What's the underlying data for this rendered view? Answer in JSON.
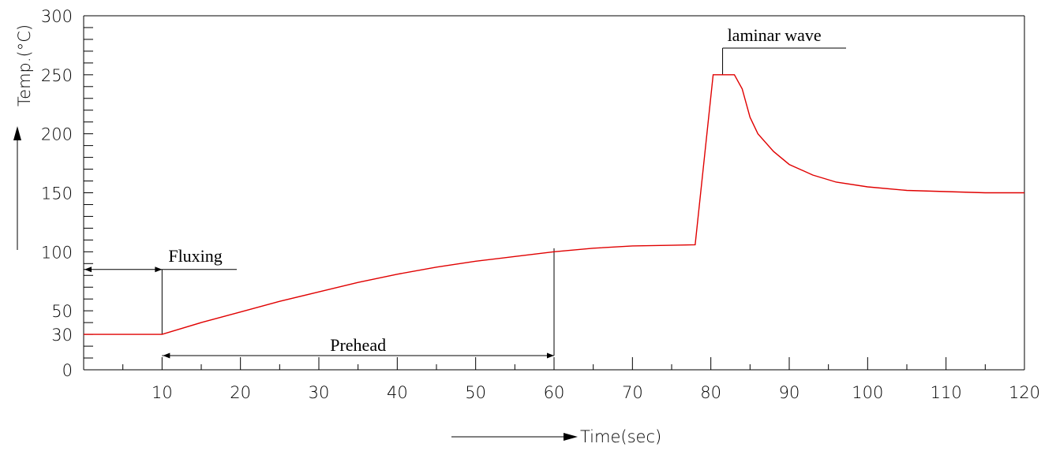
{
  "chart_data": {
    "type": "line",
    "title": "",
    "xlabel": "Time(sec)",
    "ylabel": "Temp.(°C)",
    "xlim": [
      0,
      120
    ],
    "ylim": [
      0,
      300
    ],
    "x_ticks": [
      10,
      20,
      30,
      40,
      50,
      60,
      70,
      80,
      90,
      100,
      110,
      120
    ],
    "y_ticks": [
      0,
      30,
      50,
      100,
      150,
      200,
      250,
      300
    ],
    "grid": false,
    "line_color": "#e00000",
    "series": [
      {
        "x": [
          0,
          10,
          15,
          20,
          25,
          30,
          35,
          40,
          45,
          50,
          55,
          60,
          65,
          70,
          75,
          78,
          80.3,
          83,
          84,
          85,
          86,
          88,
          90,
          93,
          96,
          100,
          105,
          110,
          115,
          120
        ],
        "y": [
          30,
          30,
          40,
          49,
          58,
          66,
          74,
          81,
          87,
          92,
          96,
          100,
          103,
          105,
          105.5,
          106,
          250,
          250,
          238,
          214,
          200,
          185,
          174,
          165,
          159,
          155,
          152,
          151,
          150,
          150
        ]
      }
    ],
    "annotations": [
      {
        "text": "Fluxing",
        "x_from": 0,
        "x_to": 10,
        "y": 85
      },
      {
        "text": "Prehead",
        "x_from": 10,
        "x_to": 60,
        "y": 12
      },
      {
        "text": "laminar wave",
        "x": 81.5,
        "y": 250
      }
    ]
  }
}
